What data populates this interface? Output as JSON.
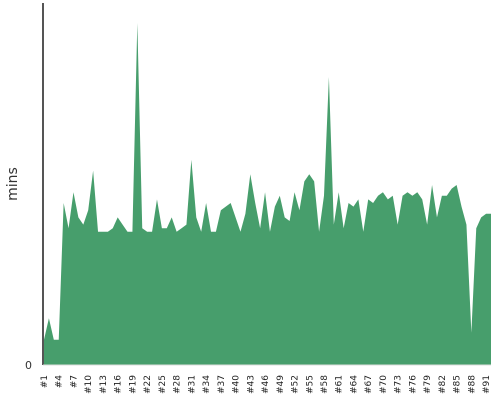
{
  "chart_data": {
    "type": "area",
    "title": "",
    "xlabel": "",
    "ylabel": "mins",
    "y_ticks": [
      "0"
    ],
    "ylim": [
      0,
      1.0
    ],
    "grid": false,
    "legend": "none",
    "colors": {
      "fill": "#479e6c",
      "axis": "#555555"
    },
    "categories": [
      "#1",
      "#2",
      "#3",
      "#4",
      "#5",
      "#6",
      "#7",
      "#8",
      "#9",
      "#10",
      "#11",
      "#12",
      "#13",
      "#14",
      "#15",
      "#16",
      "#17",
      "#18",
      "#19",
      "#20",
      "#21",
      "#22",
      "#23",
      "#24",
      "#25",
      "#26",
      "#27",
      "#28",
      "#29",
      "#30",
      "#31",
      "#32",
      "#33",
      "#34",
      "#35",
      "#36",
      "#37",
      "#38",
      "#39",
      "#40",
      "#41",
      "#42",
      "#43",
      "#44",
      "#45",
      "#46",
      "#47",
      "#48",
      "#49",
      "#50",
      "#51",
      "#52",
      "#53",
      "#54",
      "#55",
      "#56",
      "#57",
      "#58",
      "#59",
      "#60",
      "#61",
      "#62",
      "#63",
      "#64",
      "#65",
      "#66",
      "#67",
      "#68",
      "#69",
      "#70",
      "#71",
      "#72",
      "#73",
      "#74",
      "#75",
      "#76",
      "#77",
      "#78",
      "#79",
      "#80",
      "#81",
      "#82",
      "#83",
      "#84",
      "#85",
      "#86",
      "#87",
      "#88",
      "#89",
      "#90",
      "#91",
      "#92"
    ],
    "tick_labels": [
      "#1",
      "#4",
      "#7",
      "#10",
      "#13",
      "#16",
      "#19",
      "#22",
      "#25",
      "#28",
      "#31",
      "#34",
      "#37",
      "#40",
      "#43",
      "#46",
      "#49",
      "#52",
      "#55",
      "#58",
      "#61",
      "#64",
      "#67",
      "#70",
      "#73",
      "#76",
      "#79",
      "#82",
      "#85",
      "#88",
      "#91"
    ],
    "values": [
      0.07,
      0.13,
      0.07,
      0.07,
      0.45,
      0.38,
      0.48,
      0.41,
      0.39,
      0.43,
      0.54,
      0.37,
      0.37,
      0.37,
      0.38,
      0.41,
      0.39,
      0.37,
      0.37,
      0.95,
      0.38,
      0.37,
      0.37,
      0.46,
      0.38,
      0.38,
      0.41,
      0.37,
      0.38,
      0.39,
      0.57,
      0.41,
      0.37,
      0.45,
      0.37,
      0.37,
      0.43,
      0.44,
      0.45,
      0.41,
      0.37,
      0.42,
      0.53,
      0.45,
      0.38,
      0.48,
      0.37,
      0.44,
      0.47,
      0.41,
      0.4,
      0.48,
      0.43,
      0.51,
      0.53,
      0.51,
      0.37,
      0.47,
      0.8,
      0.39,
      0.48,
      0.38,
      0.45,
      0.44,
      0.46,
      0.37,
      0.46,
      0.45,
      0.47,
      0.48,
      0.46,
      0.47,
      0.39,
      0.47,
      0.48,
      0.47,
      0.48,
      0.46,
      0.39,
      0.5,
      0.41,
      0.47,
      0.47,
      0.49,
      0.5,
      0.44,
      0.39,
      0.09,
      0.38,
      0.41,
      0.42,
      0.42
    ]
  }
}
